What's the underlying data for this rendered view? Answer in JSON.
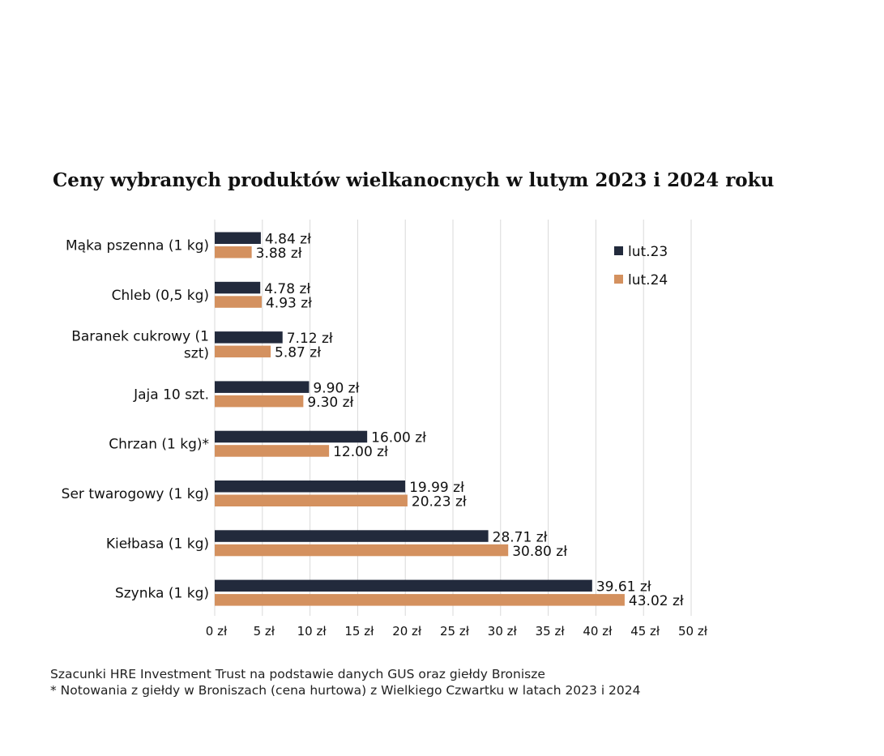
{
  "chart_data": {
    "type": "bar",
    "orientation": "horizontal",
    "title": "Ceny wybranych produktów wielkanocnych w lutym 2023 i 2024 roku",
    "categories": [
      "Mąka pszenna (1 kg)",
      "Chleb (0,5 kg)",
      "Baranek cukrowy (1 szt)",
      "Jaja 10 szt.",
      "Chrzan (1 kg)*",
      "Ser twarogowy (1 kg)",
      "Kiełbasa (1 kg)",
      "Szynka (1 kg)"
    ],
    "category_lines": [
      [
        "Mąka pszenna (1 kg)"
      ],
      [
        "Chleb (0,5 kg)"
      ],
      [
        "Baranek cukrowy (1",
        "szt)"
      ],
      [
        "Jaja 10 szt."
      ],
      [
        "Chrzan (1 kg)*"
      ],
      [
        "Ser twarogowy (1 kg)"
      ],
      [
        "Kiełbasa (1 kg)"
      ],
      [
        "Szynka (1 kg)"
      ]
    ],
    "series": [
      {
        "name": "lut.23",
        "color": "#222a3c",
        "values": [
          4.84,
          4.78,
          7.12,
          9.9,
          16.0,
          19.99,
          28.71,
          39.61
        ],
        "labels": [
          "4.84 zł",
          "4.78 zł",
          "7.12 zł",
          "9.90 zł",
          "16.00 zł",
          "19.99 zł",
          "28.71 zł",
          "39.61 zł"
        ]
      },
      {
        "name": "lut.24",
        "color": "#d4915f",
        "values": [
          3.88,
          4.93,
          5.87,
          9.3,
          12.0,
          20.23,
          30.8,
          43.02
        ],
        "labels": [
          "3.88 zł",
          "4.93 zł",
          "5.87 zł",
          "9.30 zł",
          "12.00 zł",
          "20.23 zł",
          "30.80 zł",
          "43.02 zł"
        ]
      }
    ],
    "xlim": [
      0,
      50
    ],
    "xticks": [
      0,
      5,
      10,
      15,
      20,
      25,
      30,
      35,
      40,
      45,
      50
    ],
    "xtick_labels": [
      "0 zł",
      "5 zł",
      "10 zł",
      "15 zł",
      "20 zł",
      "25 zł",
      "30 zł",
      "35 zł",
      "40 zł",
      "45 zł",
      "50 zł"
    ],
    "grid": "vertical",
    "legend_position": "top-right"
  },
  "footnotes": [
    "Szacunki HRE Investment Trust na podstawie danych GUS oraz giełdy Bronisze",
    "* Notowania z giełdy w Broniszach (cena hurtowa) z Wielkiego Czwartku w latach 2023 i 2024"
  ]
}
